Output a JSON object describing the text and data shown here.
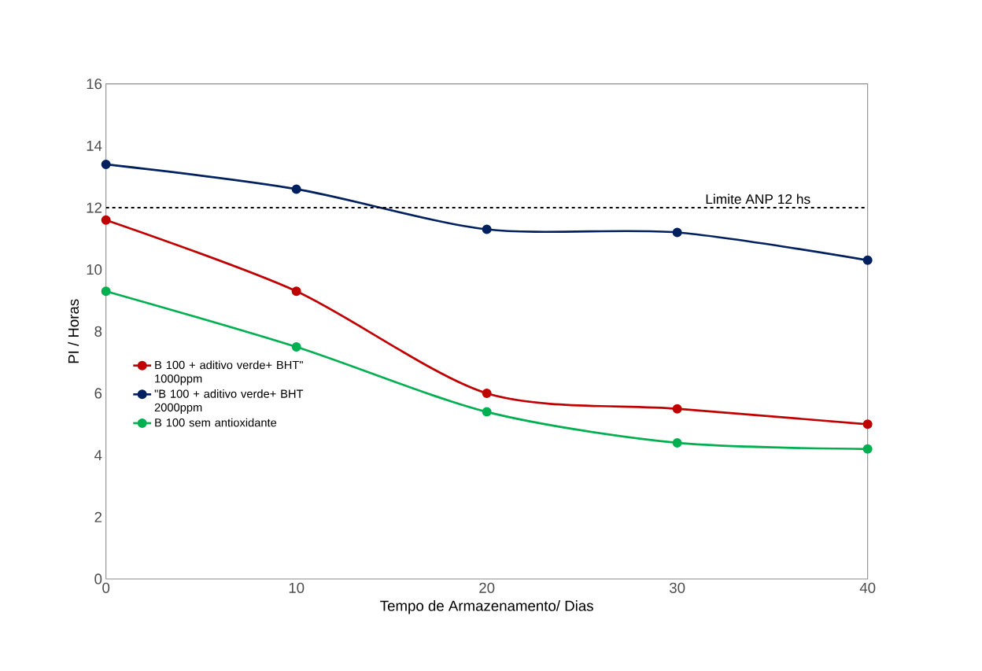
{
  "chart_data": {
    "type": "line",
    "xlabel": "Tempo de Armazenamento/ Dias",
    "ylabel": "PI / Horas",
    "x": [
      0,
      10,
      20,
      30,
      40
    ],
    "series": [
      {
        "name": "B 100 + aditivo verde+ BHT\" 1000ppm",
        "color": "#c00000",
        "values": [
          11.6,
          9.3,
          6.0,
          5.5,
          5.0
        ]
      },
      {
        "name": "\"B 100 + aditivo verde+ BHT 2000ppm",
        "color": "#002060",
        "values": [
          13.4,
          12.6,
          11.3,
          11.2,
          10.3
        ]
      },
      {
        "name": "B 100 sem antioxidante",
        "color": "#00b050",
        "values": [
          9.3,
          7.5,
          5.4,
          4.4,
          4.2
        ]
      }
    ],
    "xlim": [
      0,
      40
    ],
    "ylim": [
      0,
      16
    ],
    "xticks": [
      0,
      10,
      20,
      30,
      40
    ],
    "yticks": [
      0,
      2,
      4,
      6,
      8,
      10,
      12,
      14,
      16
    ],
    "ref_lines": [
      {
        "axis": "y",
        "value": 12,
        "label": "Limite ANP 12 hs",
        "color": "#000000",
        "line_style": "dashed"
      }
    ],
    "grid": false,
    "legend": "left",
    "marker": "circle",
    "line_style": "solid"
  }
}
